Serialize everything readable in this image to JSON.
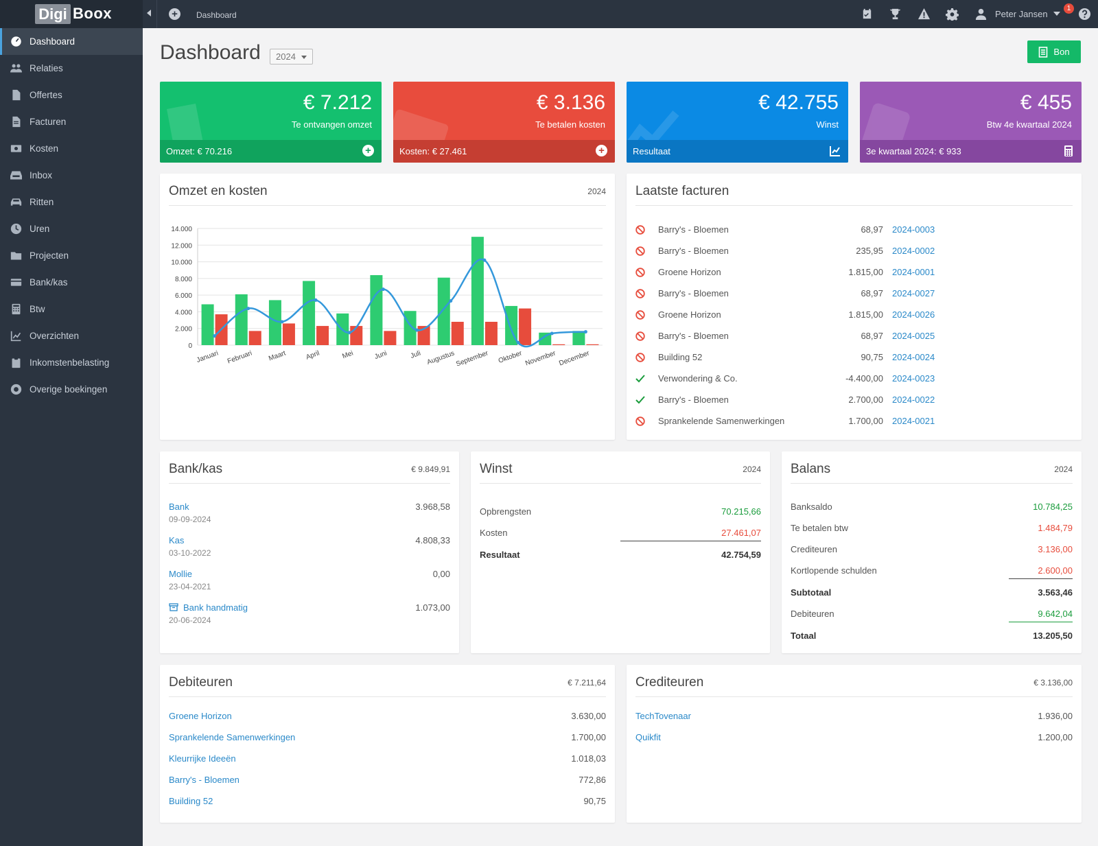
{
  "brand": {
    "logo_box": "Digi",
    "logo_text": "Boox"
  },
  "topbar": {
    "breadcrumb": "Dashboard",
    "alerts_badge": "1",
    "user_name": "Peter Jansen"
  },
  "sidebar": {
    "items": [
      {
        "label": "Dashboard",
        "icon": "dashboard-icon",
        "active": true
      },
      {
        "label": "Relaties",
        "icon": "users-icon"
      },
      {
        "label": "Offertes",
        "icon": "file-icon"
      },
      {
        "label": "Facturen",
        "icon": "file-text-icon"
      },
      {
        "label": "Kosten",
        "icon": "money-icon"
      },
      {
        "label": "Inbox",
        "icon": "inbox-icon"
      },
      {
        "label": "Ritten",
        "icon": "car-icon"
      },
      {
        "label": "Uren",
        "icon": "clock-icon"
      },
      {
        "label": "Projecten",
        "icon": "folder-icon"
      },
      {
        "label": "Bank/kas",
        "icon": "credit-card-icon"
      },
      {
        "label": "Btw",
        "icon": "calculator-icon"
      },
      {
        "label": "Overzichten",
        "icon": "line-chart-icon"
      },
      {
        "label": "Inkomstenbelasting",
        "icon": "clipboard-icon"
      },
      {
        "label": "Overige boekingen",
        "icon": "lifebuoy-icon"
      }
    ]
  },
  "header": {
    "title": "Dashboard",
    "year": "2024",
    "bon_label": "Bon"
  },
  "stats": [
    {
      "amount": "€ 7.212",
      "label": "Te ontvangen omzet",
      "footer": "Omzet: € 70.216",
      "color": "#14c06f",
      "footer_color": "#10a35d"
    },
    {
      "amount": "€ 3.136",
      "label": "Te betalen kosten",
      "footer": "Kosten: € 27.461",
      "color": "#e84c3d",
      "footer_color": "#c53e32"
    },
    {
      "amount": "€ 42.755",
      "label": "Winst",
      "footer": "Resultaat",
      "color": "#0b8ae4",
      "footer_color": "#0a76c3"
    },
    {
      "amount": "€ 455",
      "label": "Btw 4e kwartaal 2024",
      "footer": "3e kwartaal 2024: € 933",
      "color": "#9b59b6",
      "footer_color": "#85479f"
    }
  ],
  "omzet_panel": {
    "title": "Omzet en kosten",
    "year": "2024"
  },
  "chart_data": {
    "type": "bar",
    "categories": [
      "Januari",
      "Februari",
      "Maart",
      "April",
      "Mei",
      "Juni",
      "Juli",
      "Augustus",
      "September",
      "Oktober",
      "November",
      "December"
    ],
    "series": [
      {
        "values": [
          4900,
          6100,
          5400,
          7700,
          3800,
          8400,
          4100,
          8100,
          13000,
          4700,
          1500,
          1700
        ],
        "color": "#2ecc71"
      },
      {
        "values": [
          3700,
          1700,
          2600,
          2300,
          2300,
          1700,
          2300,
          2800,
          2800,
          4400,
          100,
          100
        ],
        "color": "#e74c3c"
      },
      {
        "type": "line",
        "values": [
          1100,
          4400,
          2800,
          5400,
          1500,
          6700,
          1800,
          5300,
          10200,
          300,
          1400,
          1600
        ],
        "color": "#3498db"
      }
    ],
    "ylim": [
      0,
      14000
    ],
    "yticks": [
      "0",
      "2.000",
      "4.000",
      "6.000",
      "8.000",
      "10.000",
      "12.000",
      "14.000"
    ],
    "grid": true
  },
  "facturen": {
    "title": "Laatste facturen",
    "rows": [
      {
        "status": "open",
        "name": "Barry's - Bloemen",
        "amount": "68,97",
        "number": "2024-0003"
      },
      {
        "status": "open",
        "name": "Barry's - Bloemen",
        "amount": "235,95",
        "number": "2024-0002"
      },
      {
        "status": "open",
        "name": "Groene Horizon",
        "amount": "1.815,00",
        "number": "2024-0001"
      },
      {
        "status": "open",
        "name": "Barry's - Bloemen",
        "amount": "68,97",
        "number": "2024-0027"
      },
      {
        "status": "open",
        "name": "Groene Horizon",
        "amount": "1.815,00",
        "number": "2024-0026"
      },
      {
        "status": "open",
        "name": "Barry's - Bloemen",
        "amount": "68,97",
        "number": "2024-0025"
      },
      {
        "status": "open",
        "name": "Building 52",
        "amount": "90,75",
        "number": "2024-0024"
      },
      {
        "status": "paid",
        "name": "Verwondering & Co.",
        "amount": "-4.400,00",
        "number": "2024-0023"
      },
      {
        "status": "paid",
        "name": "Barry's - Bloemen",
        "amount": "2.700,00",
        "number": "2024-0022"
      },
      {
        "status": "open",
        "name": "Sprankelende Samenwerkingen",
        "amount": "1.700,00",
        "number": "2024-0021"
      }
    ]
  },
  "bankkas": {
    "title": "Bank/kas",
    "total": "€ 9.849,91",
    "accounts": [
      {
        "name": "Bank",
        "date": "09-09-2024",
        "amount": "3.968,58",
        "archived": false
      },
      {
        "name": "Kas",
        "date": "03-10-2022",
        "amount": "4.808,33",
        "archived": false
      },
      {
        "name": "Mollie",
        "date": "23-04-2021",
        "amount": "0,00",
        "archived": false
      },
      {
        "name": "Bank handmatig",
        "date": "20-06-2024",
        "amount": "1.073,00",
        "archived": true
      }
    ]
  },
  "winst": {
    "title": "Winst",
    "year": "2024",
    "opbrengsten_label": "Opbrengsten",
    "opbrengsten": "70.215,66",
    "kosten_label": "Kosten",
    "kosten": "27.461,07",
    "resultaat_label": "Resultaat",
    "resultaat": "42.754,59"
  },
  "balans": {
    "title": "Balans",
    "year": "2024",
    "banksaldo_label": "Banksaldo",
    "banksaldo": "10.784,25",
    "btw_label": "Te betalen btw",
    "btw": "1.484,79",
    "crediteuren_label": "Crediteuren",
    "crediteuren": "3.136,00",
    "kortlopend_label": "Kortlopende schulden",
    "kortlopend": "2.600,00",
    "subtotaal_label": "Subtotaal",
    "subtotaal": "3.563,46",
    "debiteuren_label": "Debiteuren",
    "debiteuren": "9.642,04",
    "totaal_label": "Totaal",
    "totaal": "13.205,50"
  },
  "debiteuren": {
    "title": "Debiteuren",
    "total": "€ 7.211,64",
    "rows": [
      {
        "name": "Groene Horizon",
        "amount": "3.630,00"
      },
      {
        "name": "Sprankelende Samenwerkingen",
        "amount": "1.700,00"
      },
      {
        "name": "Kleurrijke Ideeën",
        "amount": "1.018,03"
      },
      {
        "name": "Barry's - Bloemen",
        "amount": "772,86"
      },
      {
        "name": "Building 52",
        "amount": "90,75"
      }
    ]
  },
  "crediteuren": {
    "title": "Crediteuren",
    "total": "€ 3.136,00",
    "rows": [
      {
        "name": "TechTovenaar",
        "amount": "1.936,00"
      },
      {
        "name": "Quikfit",
        "amount": "1.200,00"
      }
    ]
  }
}
